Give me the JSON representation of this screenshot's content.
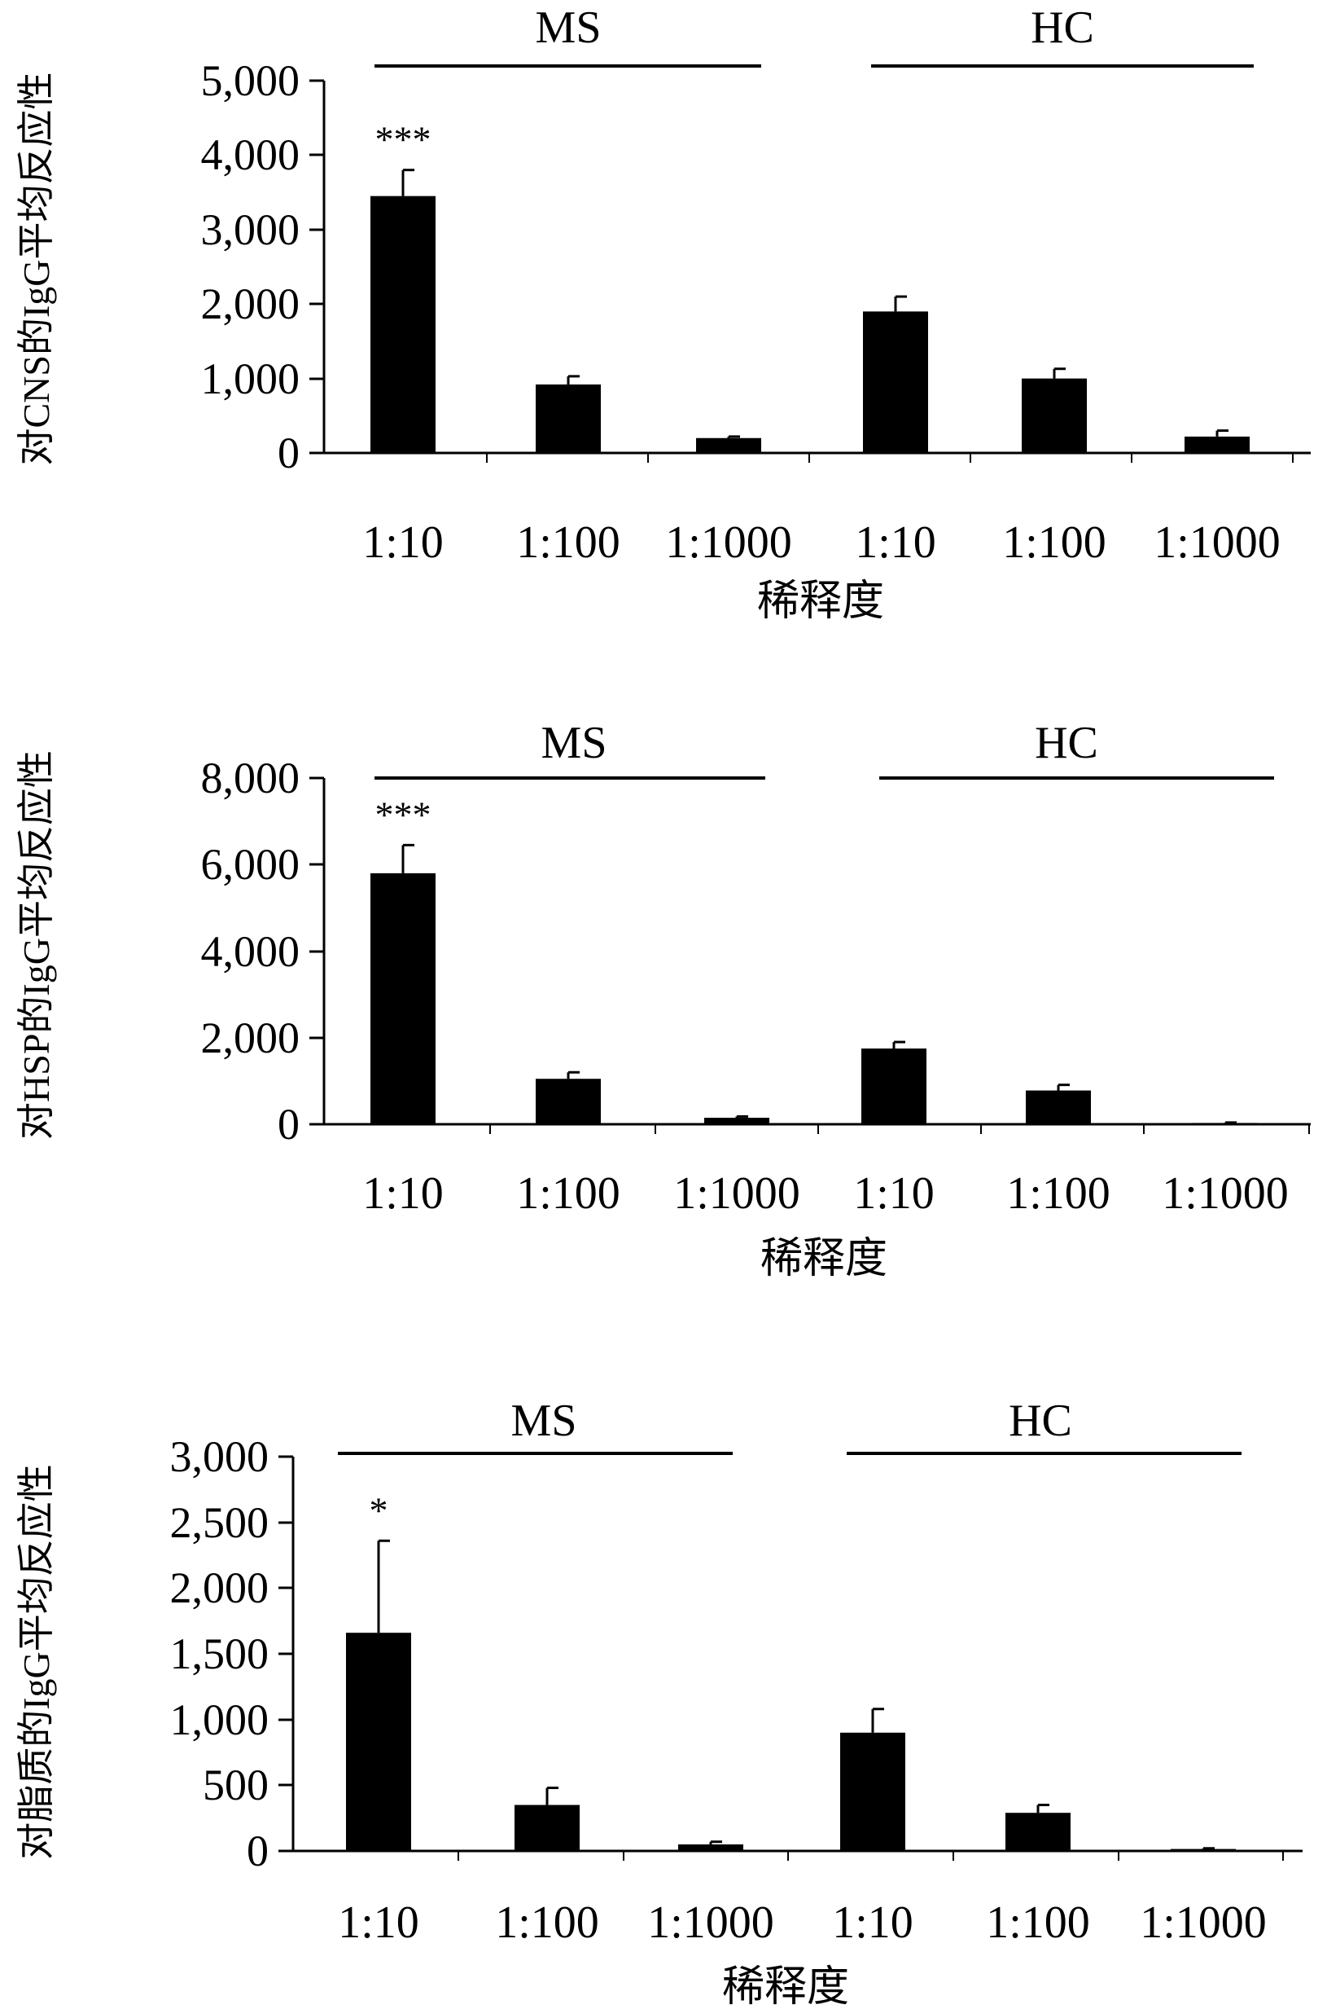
{
  "figure": {
    "panels": [
      {
        "id": "cns",
        "ylabel": "对CNS的IgG平均反应性",
        "xlabel": "稀释度",
        "groups": [
          "MS",
          "HC"
        ],
        "categories": [
          "1:10",
          "1:100",
          "1:1000",
          "1:10",
          "1:100",
          "1:1000"
        ],
        "yticks": [
          "5,000",
          "4,000",
          "3,000",
          "2,000",
          "1,000",
          "0"
        ],
        "significance": [
          "***",
          "",
          "",
          "",
          "",
          ""
        ]
      },
      {
        "id": "hsp",
        "ylabel": "对HSP的IgG平均反应性",
        "xlabel": "稀释度",
        "groups": [
          "MS",
          "HC"
        ],
        "categories": [
          "1:10",
          "1:100",
          "1:1000",
          "1:10",
          "1:100",
          "1:1000"
        ],
        "yticks": [
          "8,000",
          "6,000",
          "4,000",
          "2,000",
          "0"
        ],
        "significance": [
          "***",
          "",
          "",
          "",
          "",
          ""
        ]
      },
      {
        "id": "lipid",
        "ylabel": "对脂质的IgG平均反应性",
        "xlabel": "稀释度",
        "groups": [
          "MS",
          "HC"
        ],
        "categories": [
          "1:10",
          "1:100",
          "1:1000",
          "1:10",
          "1:100",
          "1:1000"
        ],
        "yticks": [
          "3,000",
          "2,500",
          "2,000",
          "1,500",
          "1,000",
          "500",
          "0"
        ],
        "significance": [
          "*",
          "",
          "",
          "",
          "",
          ""
        ]
      }
    ]
  },
  "chart_data": [
    {
      "type": "bar",
      "title": "",
      "xlabel": "稀释度",
      "ylabel": "对CNS的IgG平均反应性",
      "groups": [
        "MS",
        "HC"
      ],
      "categories": [
        "1:10",
        "1:100",
        "1:1000",
        "1:10",
        "1:100",
        "1:1000"
      ],
      "values": [
        3450,
        920,
        200,
        1900,
        1000,
        220
      ],
      "errors": [
        350,
        110,
        20,
        200,
        130,
        80
      ],
      "significance": [
        "***",
        "",
        "",
        "",
        "",
        ""
      ],
      "ylim": [
        0,
        5000
      ],
      "yticks": [
        0,
        1000,
        2000,
        3000,
        4000,
        5000
      ],
      "bar_color": "#000000"
    },
    {
      "type": "bar",
      "title": "",
      "xlabel": "稀释度",
      "ylabel": "对HSP的IgG平均反应性",
      "groups": [
        "MS",
        "HC"
      ],
      "categories": [
        "1:10",
        "1:100",
        "1:1000",
        "1:10",
        "1:100",
        "1:1000"
      ],
      "values": [
        5800,
        1050,
        150,
        1750,
        780,
        30
      ],
      "errors": [
        650,
        150,
        30,
        150,
        130,
        10
      ],
      "significance": [
        "***",
        "",
        "",
        "",
        "",
        ""
      ],
      "ylim": [
        0,
        8000
      ],
      "yticks": [
        0,
        2000,
        4000,
        6000,
        8000
      ],
      "bar_color": "#000000"
    },
    {
      "type": "bar",
      "title": "",
      "xlabel": "稀释度",
      "ylabel": "对脂质的IgG平均反应性",
      "groups": [
        "MS",
        "HC"
      ],
      "categories": [
        "1:10",
        "1:100",
        "1:1000",
        "1:10",
        "1:100",
        "1:1000"
      ],
      "values": [
        1660,
        350,
        50,
        900,
        290,
        15
      ],
      "errors": [
        700,
        130,
        20,
        180,
        60,
        5
      ],
      "significance": [
        "*",
        "",
        "",
        "",
        "",
        ""
      ],
      "ylim": [
        0,
        3000
      ],
      "yticks": [
        0,
        500,
        1000,
        1500,
        2000,
        2500,
        3000
      ],
      "bar_color": "#000000"
    }
  ]
}
